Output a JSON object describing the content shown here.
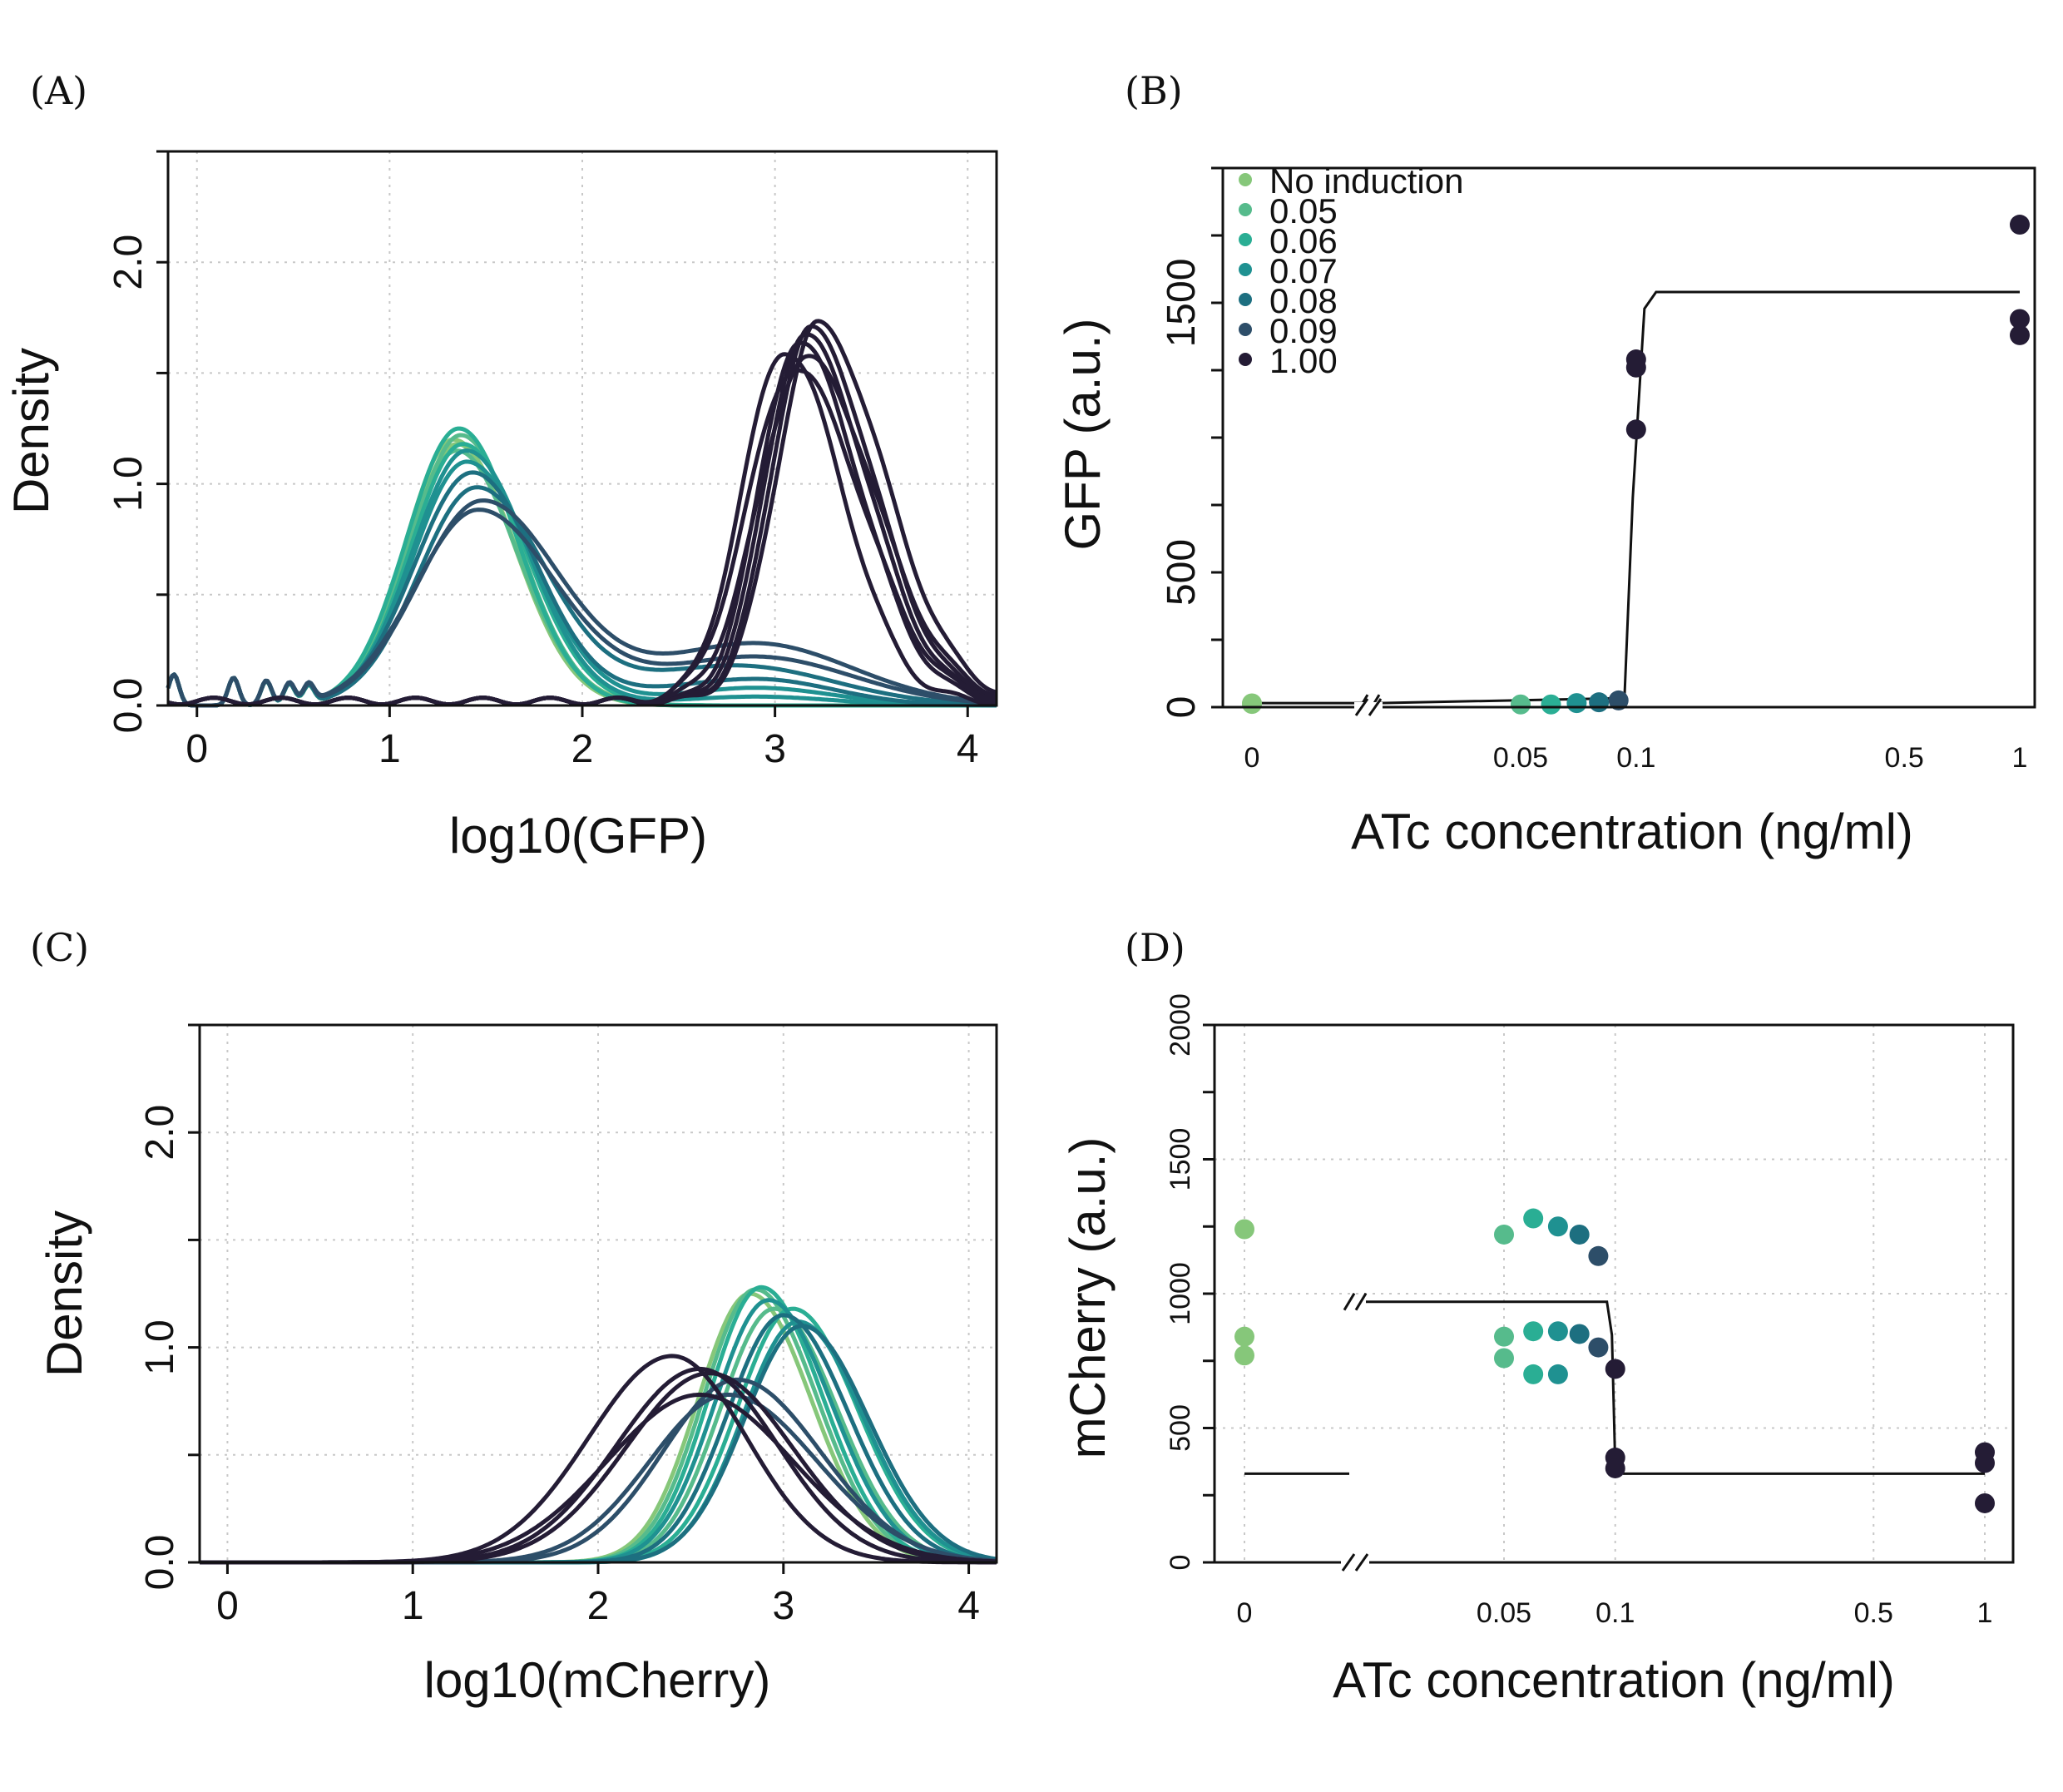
{
  "colors": {
    "none": "#86c77a",
    "c005": "#56bb8c",
    "c006": "#2aae94",
    "c007": "#1f9191",
    "c008": "#1d6f80",
    "c009": "#2d4e69",
    "c100": "#241c35"
  },
  "legend": {
    "items": [
      {
        "label": "No induction",
        "color": "#86c77a"
      },
      {
        "label": "0.05",
        "color": "#56bb8c"
      },
      {
        "label": "0.06",
        "color": "#2aae94"
      },
      {
        "label": "0.07",
        "color": "#1f9191"
      },
      {
        "label": "0.08",
        "color": "#1d6f80"
      },
      {
        "label": "0.09",
        "color": "#2d4e69"
      },
      {
        "label": "1.00",
        "color": "#241c35"
      }
    ]
  },
  "panels": {
    "A": {
      "letter": "(A)",
      "xlabel": "log10(GFP)",
      "ylabel": "Density"
    },
    "B": {
      "letter": "(B)",
      "xlabel": "ATc concentration (ng/ml)",
      "ylabel": "GFP (a.u.)"
    },
    "C": {
      "letter": "(C)",
      "xlabel": "log10(mCherry)",
      "ylabel": "Density"
    },
    "D": {
      "letter": "(D)",
      "xlabel": "ATc concentration (ng/ml)",
      "ylabel": "mCherry (a.u.)"
    }
  },
  "chart_data": [
    {
      "panel": "A",
      "type": "line",
      "xlabel": "log10(GFP)",
      "ylabel": "Density",
      "xlim": [
        -0.15,
        4.15
      ],
      "ylim": [
        0,
        2.5
      ],
      "xticks": [
        "0",
        "1",
        "2",
        "3",
        "4"
      ],
      "yticks": [
        "0.0",
        "1.0",
        "2.0"
      ],
      "grid": true,
      "series": [
        {
          "group": "none",
          "peaks": [
            [
              1.35,
              1.18,
              0.26,
              0.3,
              0.0,
              1,
              0
            ]
          ]
        },
        {
          "group": "none",
          "peaks": [
            [
              1.33,
              1.2,
              0.25,
              0.32,
              0.0,
              1,
              0
            ]
          ]
        },
        {
          "group": "c005",
          "peaks": [
            [
              1.37,
              1.22,
              0.26,
              0.3,
              0.0,
              1,
              0
            ]
          ]
        },
        {
          "group": "c005",
          "peaks": [
            [
              1.35,
              1.15,
              0.27,
              0.31,
              0.0,
              1,
              0
            ]
          ]
        },
        {
          "group": "c006",
          "peaks": [
            [
              1.36,
              1.25,
              0.27,
              0.3,
              0.0,
              1,
              0
            ]
          ]
        },
        {
          "group": "c006",
          "peaks": [
            [
              1.38,
              1.18,
              0.27,
              0.32,
              0.0,
              1,
              0
            ]
          ]
        },
        {
          "group": "c007",
          "peaks": [
            [
              1.4,
              1.15,
              0.28,
              0.32,
              0.0,
              1,
              0
            ],
            [
              2.9,
              0.04,
              0.4,
              0.4,
              0,
              0,
              0
            ]
          ]
        },
        {
          "group": "c007",
          "peaks": [
            [
              1.4,
              1.1,
              0.28,
              0.34,
              0.0,
              1,
              0
            ],
            [
              2.9,
              0.08,
              0.4,
              0.4,
              0,
              0,
              0
            ]
          ]
        },
        {
          "group": "c008",
          "peaks": [
            [
              1.43,
              1.05,
              0.3,
              0.33,
              0.0,
              1,
              0
            ],
            [
              2.9,
              0.12,
              0.5,
              0.4,
              0,
              0,
              0
            ]
          ]
        },
        {
          "group": "c008",
          "peaks": [
            [
              1.45,
              0.98,
              0.3,
              0.36,
              0.0,
              1,
              0
            ],
            [
              2.8,
              0.18,
              0.5,
              0.5,
              0,
              0,
              0
            ]
          ]
        },
        {
          "group": "c009",
          "peaks": [
            [
              1.48,
              0.92,
              0.33,
              0.4,
              0.0,
              1,
              0
            ],
            [
              2.9,
              0.28,
              0.5,
              0.5,
              0,
              0,
              0
            ]
          ]
        },
        {
          "group": "c009",
          "peaks": [
            [
              1.46,
              0.88,
              0.33,
              0.4,
              0.0,
              1,
              0
            ],
            [
              2.9,
              0.22,
              0.5,
              0.5,
              0,
              0,
              0
            ]
          ]
        },
        {
          "group": "c100",
          "peaks": [
            [
              3.05,
              1.58,
              0.22,
              0.3,
              0.0,
              0,
              0
            ]
          ]
        },
        {
          "group": "c100",
          "peaks": [
            [
              3.12,
              1.62,
              0.2,
              0.32,
              0.0,
              0,
              0
            ]
          ]
        },
        {
          "group": "c100",
          "peaks": [
            [
              3.15,
              1.65,
              0.2,
              0.33,
              0.0,
              0,
              0
            ]
          ]
        },
        {
          "group": "c100",
          "peaks": [
            [
              3.18,
              1.68,
              0.2,
              0.33,
              0.0,
              0,
              0
            ]
          ]
        },
        {
          "group": "c100",
          "peaks": [
            [
              3.22,
              1.7,
              0.21,
              0.35,
              0.0,
              0,
              0
            ]
          ]
        },
        {
          "group": "c100",
          "peaks": [
            [
              3.16,
              1.55,
              0.24,
              0.36,
              0.0,
              0,
              0
            ]
          ]
        },
        {
          "group": "c100",
          "peaks": [
            [
              3.1,
              1.5,
              0.24,
              0.35,
              0.0,
              0,
              0
            ]
          ]
        }
      ]
    },
    {
      "panel": "B",
      "type": "scatter",
      "xlabel": "ATc concentration (ng/ml)",
      "ylabel": "GFP (a.u.)",
      "xticks": [
        "0",
        "0.05",
        "0.1",
        "0.5",
        "1"
      ],
      "yticks": [
        "0",
        "500",
        "1500"
      ],
      "ylim": [
        0,
        2000
      ],
      "legend_position": "top-left",
      "points": [
        {
          "x": 0,
          "y": 12,
          "group": "none"
        },
        {
          "x": 0,
          "y": 14,
          "group": "none"
        },
        {
          "x": 0.05,
          "y": 10,
          "group": "c005"
        },
        {
          "x": 0.06,
          "y": 10,
          "group": "c006"
        },
        {
          "x": 0.07,
          "y": 15,
          "group": "c007"
        },
        {
          "x": 0.08,
          "y": 18,
          "group": "c008"
        },
        {
          "x": 0.09,
          "y": 25,
          "group": "c009"
        },
        {
          "x": 0.1,
          "y": 1290,
          "group": "c100"
        },
        {
          "x": 0.1,
          "y": 1260,
          "group": "c100"
        },
        {
          "x": 0.1,
          "y": 1030,
          "group": "c100"
        },
        {
          "x": 1,
          "y": 1790,
          "group": "c100"
        },
        {
          "x": 1,
          "y": 1440,
          "group": "c100"
        },
        {
          "x": 1,
          "y": 1380,
          "group": "c100"
        }
      ],
      "fit": {
        "low": 15,
        "high": 1540,
        "switch_x": 0.1
      }
    },
    {
      "panel": "C",
      "type": "line",
      "xlabel": "log10(mCherry)",
      "ylabel": "Density",
      "xlim": [
        -0.15,
        4.15
      ],
      "ylim": [
        0,
        2.5
      ],
      "xticks": [
        "0",
        "1",
        "2",
        "3",
        "4"
      ],
      "yticks": [
        "0.0",
        "1.0",
        "2.0"
      ],
      "grid": true,
      "series": [
        {
          "group": "none",
          "peaks": [
            [
              2.82,
              1.25,
              0.28,
              0.33,
              0,
              0,
              0
            ]
          ]
        },
        {
          "group": "c005",
          "peaks": [
            [
              2.85,
              1.27,
              0.28,
              0.33,
              0,
              0,
              0
            ]
          ]
        },
        {
          "group": "c005",
          "peaks": [
            [
              2.95,
              1.18,
              0.29,
              0.34,
              0,
              0,
              0
            ]
          ]
        },
        {
          "group": "c006",
          "peaks": [
            [
              2.88,
              1.28,
              0.28,
              0.33,
              0,
              0,
              0
            ]
          ]
        },
        {
          "group": "c006",
          "peaks": [
            [
              3.05,
              1.18,
              0.3,
              0.35,
              0,
              0,
              0
            ]
          ]
        },
        {
          "group": "c007",
          "peaks": [
            [
              2.92,
              1.22,
              0.29,
              0.34,
              0,
              0,
              0
            ]
          ]
        },
        {
          "group": "c007",
          "peaks": [
            [
              3.08,
              1.12,
              0.3,
              0.35,
              0,
              0,
              0
            ]
          ]
        },
        {
          "group": "c008",
          "peaks": [
            [
              3.0,
              1.15,
              0.3,
              0.35,
              0,
              0,
              0
            ]
          ]
        },
        {
          "group": "c008",
          "peaks": [
            [
              3.1,
              1.1,
              0.31,
              0.36,
              0,
              0,
              0
            ]
          ]
        },
        {
          "group": "c009",
          "peaks": [
            [
              2.75,
              0.85,
              0.4,
              0.45,
              0,
              0,
              0
            ]
          ]
        },
        {
          "group": "c009",
          "peaks": [
            [
              2.7,
              0.78,
              0.42,
              0.48,
              0,
              0,
              0
            ]
          ]
        },
        {
          "group": "c100",
          "peaks": [
            [
              2.4,
              0.96,
              0.45,
              0.4,
              0,
              0,
              0
            ]
          ]
        },
        {
          "group": "c100",
          "peaks": [
            [
              2.55,
              0.9,
              0.45,
              0.42,
              0,
              0,
              0
            ]
          ]
        },
        {
          "group": "c100",
          "peaks": [
            [
              2.6,
              0.88,
              0.45,
              0.45,
              0,
              0,
              0
            ]
          ]
        },
        {
          "group": "c100",
          "peaks": [
            [
              2.55,
              0.78,
              0.5,
              0.5,
              0,
              0,
              0
            ]
          ]
        }
      ]
    },
    {
      "panel": "D",
      "type": "scatter",
      "xlabel": "ATc concentration (ng/ml)",
      "ylabel": "mCherry (a.u.)",
      "xticks": [
        "0",
        "0.05",
        "0.1",
        "0.5",
        "1"
      ],
      "yticks": [
        "0",
        "500",
        "1000",
        "1500",
        "2000"
      ],
      "ylim": [
        0,
        2000
      ],
      "grid": true,
      "points": [
        {
          "x": 0,
          "y": 1240,
          "group": "none"
        },
        {
          "x": 0,
          "y": 840,
          "group": "none"
        },
        {
          "x": 0,
          "y": 770,
          "group": "none"
        },
        {
          "x": 0.05,
          "y": 1220,
          "group": "c005"
        },
        {
          "x": 0.05,
          "y": 840,
          "group": "c005"
        },
        {
          "x": 0.05,
          "y": 760,
          "group": "c005"
        },
        {
          "x": 0.06,
          "y": 1280,
          "group": "c006"
        },
        {
          "x": 0.06,
          "y": 860,
          "group": "c006"
        },
        {
          "x": 0.06,
          "y": 700,
          "group": "c006"
        },
        {
          "x": 0.07,
          "y": 1250,
          "group": "c007"
        },
        {
          "x": 0.07,
          "y": 860,
          "group": "c007"
        },
        {
          "x": 0.07,
          "y": 700,
          "group": "c007"
        },
        {
          "x": 0.08,
          "y": 1220,
          "group": "c008"
        },
        {
          "x": 0.08,
          "y": 850,
          "group": "c008"
        },
        {
          "x": 0.09,
          "y": 1140,
          "group": "c009"
        },
        {
          "x": 0.09,
          "y": 800,
          "group": "c009"
        },
        {
          "x": 0.1,
          "y": 720,
          "group": "c100"
        },
        {
          "x": 0.1,
          "y": 390,
          "group": "c100"
        },
        {
          "x": 0.1,
          "y": 350,
          "group": "c100"
        },
        {
          "x": 1,
          "y": 410,
          "group": "c100"
        },
        {
          "x": 1,
          "y": 370,
          "group": "c100"
        },
        {
          "x": 1,
          "y": 220,
          "group": "c100"
        }
      ],
      "fit": {
        "low": 330,
        "high": 970,
        "switch_x": 0.1
      }
    }
  ]
}
